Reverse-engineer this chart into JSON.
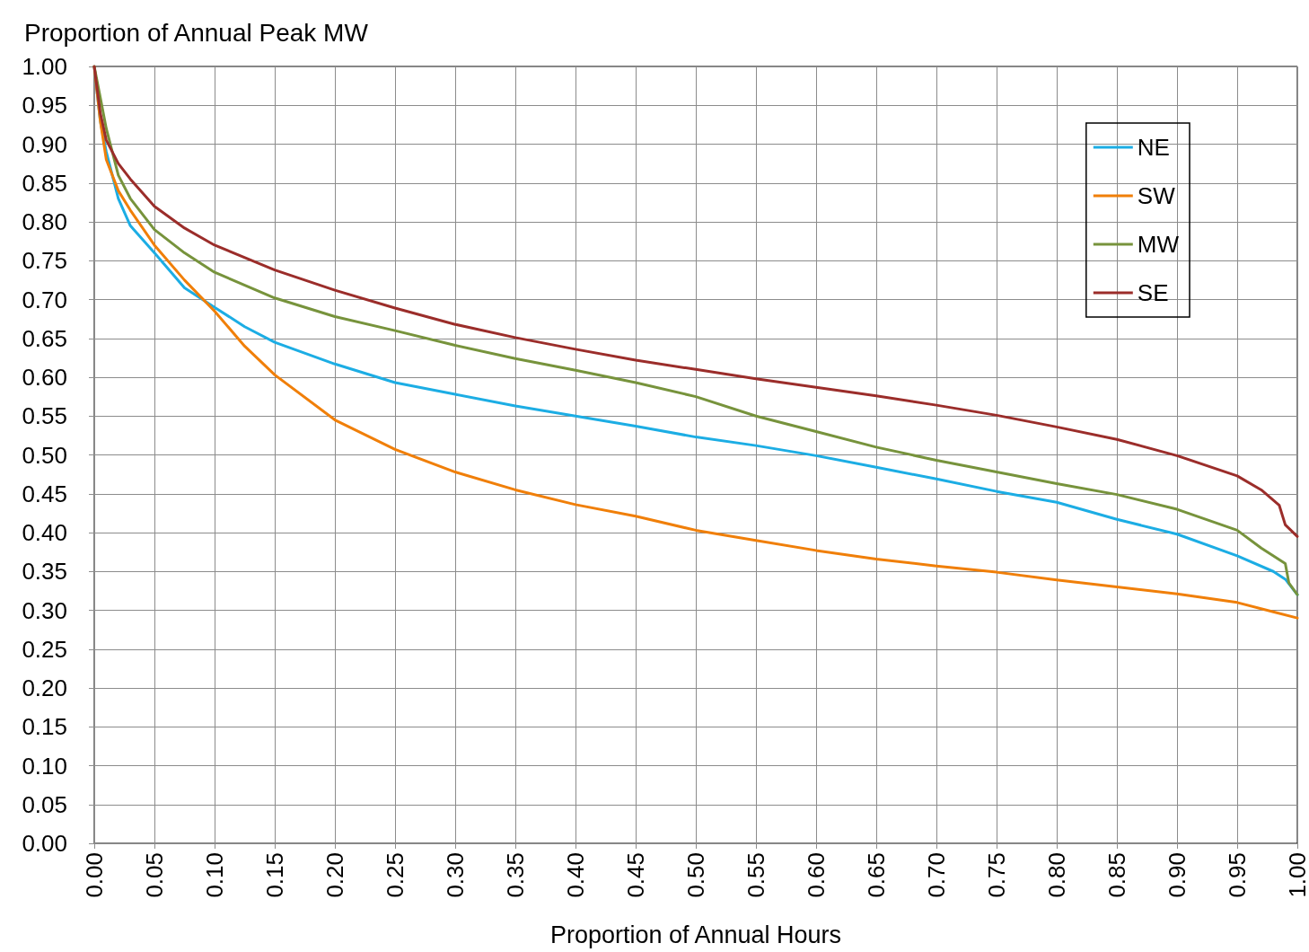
{
  "chart_data": {
    "type": "line",
    "xlabel": "Proportion of Annual Hours",
    "ylabel": "Proportion of Annual Peak MW",
    "xlim": [
      0,
      1
    ],
    "ylim": [
      0,
      1
    ],
    "xticks": [
      {
        "value": 0,
        "label": "0.00"
      },
      {
        "value": 0.05,
        "label": "0.05"
      },
      {
        "value": 0.1,
        "label": "0.10"
      },
      {
        "value": 0.15,
        "label": "0.15"
      },
      {
        "value": 0.2,
        "label": "0.20"
      },
      {
        "value": 0.25,
        "label": "0.25"
      },
      {
        "value": 0.3,
        "label": "0.30"
      },
      {
        "value": 0.35,
        "label": "0.35"
      },
      {
        "value": 0.4,
        "label": "0.40"
      },
      {
        "value": 0.45,
        "label": "0.45"
      },
      {
        "value": 0.5,
        "label": "0.50"
      },
      {
        "value": 0.55,
        "label": "0.55"
      },
      {
        "value": 0.6,
        "label": "0.60"
      },
      {
        "value": 0.65,
        "label": "0.65"
      },
      {
        "value": 0.7,
        "label": "0.70"
      },
      {
        "value": 0.75,
        "label": "0.75"
      },
      {
        "value": 0.8,
        "label": "0.80"
      },
      {
        "value": 0.85,
        "label": "0.85"
      },
      {
        "value": 0.9,
        "label": "0.90"
      },
      {
        "value": 0.95,
        "label": "0.95"
      },
      {
        "value": 1,
        "label": "1.00"
      }
    ],
    "yticks": [
      {
        "value": 0,
        "label": "0.00"
      },
      {
        "value": 0.05,
        "label": "0.05"
      },
      {
        "value": 0.1,
        "label": "0.10"
      },
      {
        "value": 0.15,
        "label": "0.15"
      },
      {
        "value": 0.2,
        "label": "0.20"
      },
      {
        "value": 0.25,
        "label": "0.25"
      },
      {
        "value": 0.3,
        "label": "0.30"
      },
      {
        "value": 0.35,
        "label": "0.35"
      },
      {
        "value": 0.4,
        "label": "0.40"
      },
      {
        "value": 0.45,
        "label": "0.45"
      },
      {
        "value": 0.5,
        "label": "0.50"
      },
      {
        "value": 0.55,
        "label": "0.55"
      },
      {
        "value": 0.6,
        "label": "0.60"
      },
      {
        "value": 0.65,
        "label": "0.65"
      },
      {
        "value": 0.7,
        "label": "0.70"
      },
      {
        "value": 0.75,
        "label": "0.75"
      },
      {
        "value": 0.8,
        "label": "0.80"
      },
      {
        "value": 0.85,
        "label": "0.85"
      },
      {
        "value": 0.9,
        "label": "0.90"
      },
      {
        "value": 0.95,
        "label": "0.95"
      },
      {
        "value": 1,
        "label": "1.00"
      }
    ],
    "grid": true,
    "legend": "top right",
    "marker": "none",
    "line_style": "solid",
    "series": [
      {
        "name": "NE",
        "color": "#1cade4",
        "x": [
          0,
          0.005,
          0.01,
          0.02,
          0.03,
          0.05,
          0.075,
          0.1,
          0.125,
          0.15,
          0.2,
          0.25,
          0.3,
          0.35,
          0.4,
          0.45,
          0.5,
          0.55,
          0.6,
          0.65,
          0.7,
          0.75,
          0.8,
          0.85,
          0.9,
          0.95,
          0.98,
          0.99,
          1
        ],
        "values": [
          1,
          0.93,
          0.89,
          0.83,
          0.795,
          0.76,
          0.715,
          0.69,
          0.665,
          0.645,
          0.617,
          0.593,
          0.578,
          0.563,
          0.55,
          0.537,
          0.523,
          0.512,
          0.499,
          0.484,
          0.469,
          0.453,
          0.439,
          0.417,
          0.398,
          0.37,
          0.35,
          0.34,
          0.32
        ]
      },
      {
        "name": "SW",
        "color": "#f07f09",
        "x": [
          0,
          0.005,
          0.01,
          0.02,
          0.03,
          0.05,
          0.075,
          0.1,
          0.125,
          0.15,
          0.2,
          0.25,
          0.3,
          0.35,
          0.4,
          0.45,
          0.5,
          0.55,
          0.6,
          0.65,
          0.7,
          0.75,
          0.8,
          0.85,
          0.9,
          0.95,
          0.98,
          1
        ],
        "values": [
          1,
          0.93,
          0.88,
          0.84,
          0.815,
          0.77,
          0.725,
          0.685,
          0.64,
          0.603,
          0.545,
          0.507,
          0.478,
          0.455,
          0.436,
          0.421,
          0.403,
          0.39,
          0.377,
          0.366,
          0.357,
          0.349,
          0.339,
          0.33,
          0.321,
          0.31,
          0.298,
          0.29
        ]
      },
      {
        "name": "MW",
        "color": "#77933c",
        "x": [
          0,
          0.005,
          0.01,
          0.02,
          0.03,
          0.05,
          0.075,
          0.1,
          0.15,
          0.2,
          0.25,
          0.3,
          0.35,
          0.4,
          0.45,
          0.5,
          0.55,
          0.6,
          0.65,
          0.7,
          0.75,
          0.8,
          0.85,
          0.9,
          0.95,
          0.97,
          0.99,
          0.993,
          1
        ],
        "values": [
          1,
          0.96,
          0.92,
          0.86,
          0.83,
          0.79,
          0.76,
          0.735,
          0.702,
          0.678,
          0.66,
          0.641,
          0.624,
          0.609,
          0.593,
          0.575,
          0.55,
          0.53,
          0.51,
          0.493,
          0.478,
          0.463,
          0.449,
          0.43,
          0.403,
          0.38,
          0.36,
          0.335,
          0.32
        ]
      },
      {
        "name": "SE",
        "color": "#9b2d2a",
        "x": [
          0,
          0.005,
          0.01,
          0.02,
          0.03,
          0.05,
          0.075,
          0.1,
          0.15,
          0.2,
          0.25,
          0.3,
          0.35,
          0.4,
          0.45,
          0.5,
          0.55,
          0.6,
          0.65,
          0.7,
          0.75,
          0.8,
          0.85,
          0.9,
          0.95,
          0.97,
          0.985,
          0.99,
          1
        ],
        "values": [
          1,
          0.94,
          0.905,
          0.875,
          0.855,
          0.82,
          0.792,
          0.77,
          0.738,
          0.712,
          0.689,
          0.668,
          0.651,
          0.636,
          0.622,
          0.61,
          0.598,
          0.587,
          0.576,
          0.564,
          0.551,
          0.536,
          0.52,
          0.499,
          0.473,
          0.455,
          0.435,
          0.41,
          0.395
        ]
      }
    ]
  }
}
